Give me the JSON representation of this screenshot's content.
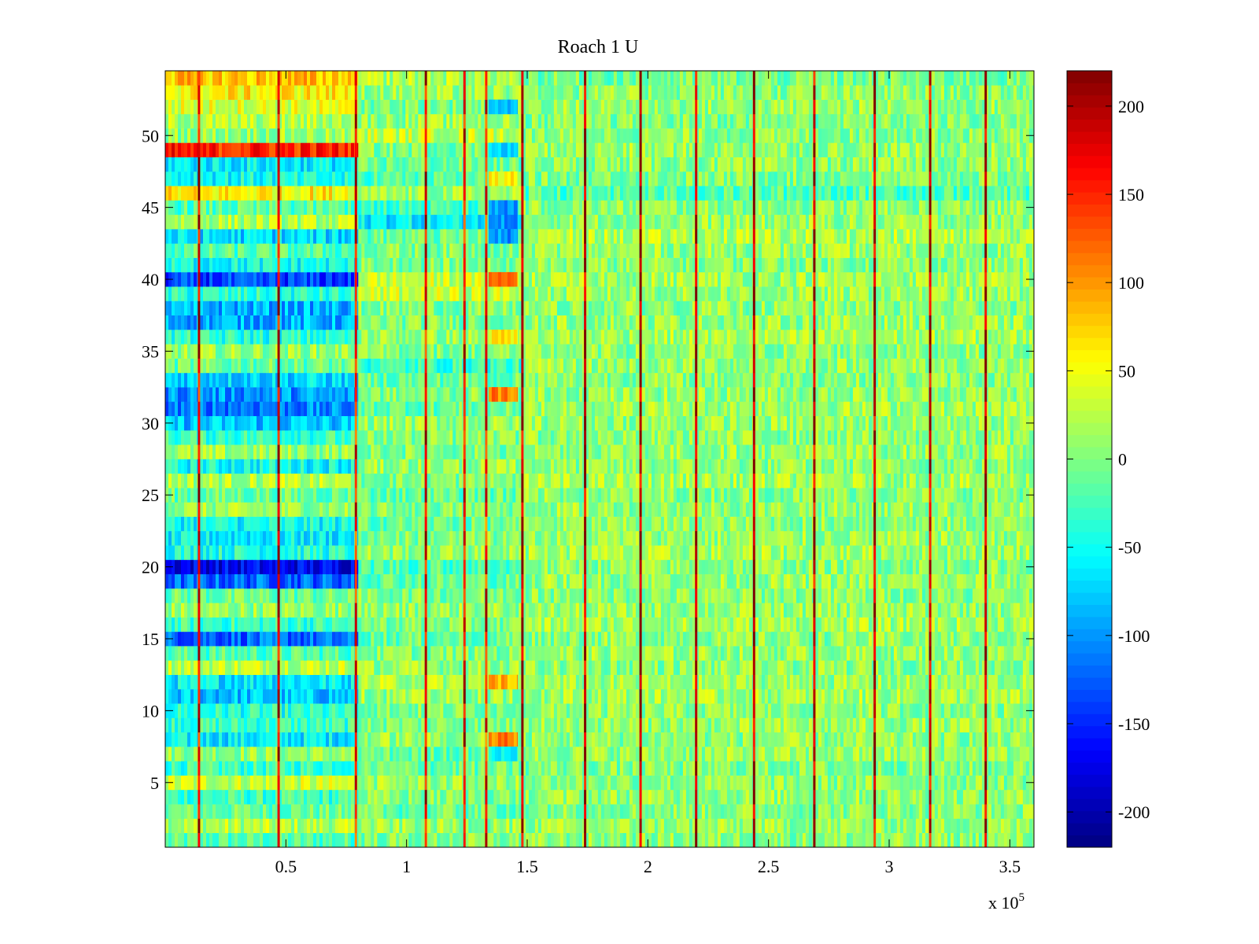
{
  "chart_data": {
    "type": "heatmap",
    "title": "Roach 1 U",
    "xlabel": "",
    "ylabel": "",
    "x_exponent_label": "x 10",
    "x_exponent_power": "5",
    "xlim": [
      0,
      360000
    ],
    "ylim": [
      0.5,
      54.5
    ],
    "n_rows": 54,
    "x_ticks": [
      {
        "value": 50000,
        "label": "0.5"
      },
      {
        "value": 100000,
        "label": "1"
      },
      {
        "value": 150000,
        "label": "1.5"
      },
      {
        "value": 200000,
        "label": "2"
      },
      {
        "value": 250000,
        "label": "2.5"
      },
      {
        "value": 300000,
        "label": "3"
      },
      {
        "value": 350000,
        "label": "3.5"
      }
    ],
    "y_ticks": [
      {
        "value": 5,
        "label": "5"
      },
      {
        "value": 10,
        "label": "10"
      },
      {
        "value": 15,
        "label": "15"
      },
      {
        "value": 20,
        "label": "20"
      },
      {
        "value": 25,
        "label": "25"
      },
      {
        "value": 30,
        "label": "30"
      },
      {
        "value": 35,
        "label": "35"
      },
      {
        "value": 40,
        "label": "40"
      },
      {
        "value": 45,
        "label": "45"
      },
      {
        "value": 50,
        "label": "50"
      }
    ],
    "colorbar": {
      "colormap": "jet",
      "range": [
        -220,
        220
      ],
      "ticks": [
        {
          "value": 200,
          "label": "200"
        },
        {
          "value": 150,
          "label": "150"
        },
        {
          "value": 100,
          "label": "100"
        },
        {
          "value": 50,
          "label": "50"
        },
        {
          "value": 0,
          "label": "0"
        },
        {
          "value": -50,
          "label": "-50"
        },
        {
          "value": -100,
          "label": "-100"
        },
        {
          "value": -150,
          "label": "-150"
        },
        {
          "value": -200,
          "label": "-200"
        }
      ]
    },
    "segments": [
      {
        "x_start": 0,
        "x_end": 80000,
        "row_values": {
          "54": 80,
          "53": 60,
          "52": 40,
          "51": 20,
          "50": 10,
          "49": 150,
          "48": -60,
          "47": -50,
          "46": 60,
          "45": -20,
          "44": 20,
          "43": -70,
          "42": -20,
          "41": -50,
          "40": -140,
          "39": -40,
          "38": -90,
          "37": -90,
          "36": -40,
          "35": 10,
          "34": -10,
          "33": -70,
          "32": -100,
          "31": -110,
          "30": -80,
          "29": -30,
          "28": 10,
          "27": -50,
          "26": 20,
          "25": -10,
          "24": 10,
          "23": -50,
          "22": -60,
          "21": -40,
          "20": -170,
          "19": -120,
          "18": -10,
          "17": 10,
          "16": -30,
          "15": -120,
          "14": -20,
          "13": 30,
          "12": -60,
          "11": -80,
          "10": -40,
          "9": -30,
          "8": -60,
          "7": 10,
          "6": -30,
          "5": 30,
          "4": -30,
          "3": -10,
          "2": 20,
          "1": -20
        }
      },
      {
        "x_start": 80000,
        "x_end": 148000,
        "row_values": {
          "54": 20,
          "53": 10,
          "52": 0,
          "51": 10,
          "50": 30,
          "49": 0,
          "48": -10,
          "47": -20,
          "46": 10,
          "45": -30,
          "44": -60,
          "43": -10,
          "42": 0,
          "41": 0,
          "40": 30,
          "39": 30,
          "38": 0,
          "37": 0,
          "36": 10,
          "35": 0,
          "34": -30,
          "33": -10,
          "32": 0,
          "31": -10,
          "30": 10,
          "29": 0,
          "28": 0,
          "27": 10,
          "26": 0,
          "25": -10,
          "24": 0,
          "23": -10,
          "22": 0,
          "21": 10,
          "20": -20,
          "19": -10,
          "18": 0,
          "17": 10,
          "16": 0,
          "15": -10,
          "14": 0,
          "13": 10,
          "12": 20,
          "11": 10,
          "10": 0,
          "9": 0,
          "8": 10,
          "7": -10,
          "6": -10,
          "5": 10,
          "4": 0,
          "3": -10,
          "2": 10,
          "1": 0
        }
      },
      {
        "x_start": 148000,
        "x_end": 360000,
        "row_values": {
          "54": -5,
          "53": 5,
          "52": 10,
          "51": 0,
          "50": 5,
          "49": 10,
          "48": 5,
          "47": 0,
          "46": -20,
          "45": 5,
          "44": 10,
          "43": 20,
          "42": 10,
          "41": 5,
          "40": 15,
          "39": 10,
          "38": 5,
          "37": 10,
          "36": 15,
          "35": 5,
          "34": 10,
          "33": 5,
          "32": 10,
          "31": 15,
          "30": 10,
          "29": 5,
          "28": 10,
          "27": 5,
          "26": 15,
          "25": 5,
          "24": 10,
          "23": 5,
          "22": 10,
          "21": 15,
          "20": 5,
          "19": 10,
          "18": 5,
          "17": 10,
          "16": 15,
          "15": 5,
          "14": 10,
          "13": 5,
          "12": 10,
          "11": 15,
          "10": 5,
          "9": 10,
          "8": 5,
          "7": 10,
          "6": 0,
          "5": 5,
          "4": 10,
          "3": 5,
          "2": 10,
          "1": 5
        }
      }
    ],
    "patches": [
      {
        "x_start": 134000,
        "x_end": 146000,
        "rows": [
          44,
          45,
          43
        ],
        "value": -100
      },
      {
        "x_start": 134000,
        "x_end": 146000,
        "rows": [
          40
        ],
        "value": 110
      },
      {
        "x_start": 134000,
        "x_end": 146000,
        "rows": [
          32
        ],
        "value": 110
      },
      {
        "x_start": 134000,
        "x_end": 146000,
        "rows": [
          12
        ],
        "value": 90
      },
      {
        "x_start": 134000,
        "x_end": 146000,
        "rows": [
          8
        ],
        "value": 110
      },
      {
        "x_start": 134000,
        "x_end": 146000,
        "rows": [
          36
        ],
        "value": 60
      },
      {
        "x_start": 134000,
        "x_end": 146000,
        "rows": [
          52
        ],
        "value": -80
      },
      {
        "x_start": 134000,
        "x_end": 146000,
        "rows": [
          49
        ],
        "value": -70
      },
      {
        "x_start": 134000,
        "x_end": 146000,
        "rows": [
          7
        ],
        "value": -50
      },
      {
        "x_start": 134000,
        "x_end": 146000,
        "rows": [
          47
        ],
        "value": 60
      }
    ],
    "vertical_lines": [
      {
        "x": 14000,
        "value": 180
      },
      {
        "x": 47000,
        "value": 180
      },
      {
        "x": 79000,
        "value": 160
      },
      {
        "x": 108000,
        "value": 170
      },
      {
        "x": 124000,
        "value": 170
      },
      {
        "x": 133000,
        "value": 150
      },
      {
        "x": 148000,
        "value": 200
      },
      {
        "x": 174000,
        "value": 200
      },
      {
        "x": 197000,
        "value": 200
      },
      {
        "x": 220000,
        "value": 200
      },
      {
        "x": 244000,
        "value": 200
      },
      {
        "x": 269000,
        "value": 190
      },
      {
        "x": 294000,
        "value": 190
      },
      {
        "x": 317000,
        "value": 190
      },
      {
        "x": 340000,
        "value": 200
      }
    ]
  }
}
